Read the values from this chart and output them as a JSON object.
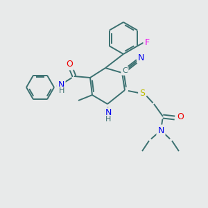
{
  "bg": "#e8eaea",
  "bond_color": "#3a7070",
  "atom_colors": {
    "N": "#0000ee",
    "O": "#ee0000",
    "S": "#bbbb00",
    "F": "#ee00ee",
    "C": "#3a7070"
  },
  "figsize": [
    3.0,
    3.0
  ],
  "dpi": 100
}
